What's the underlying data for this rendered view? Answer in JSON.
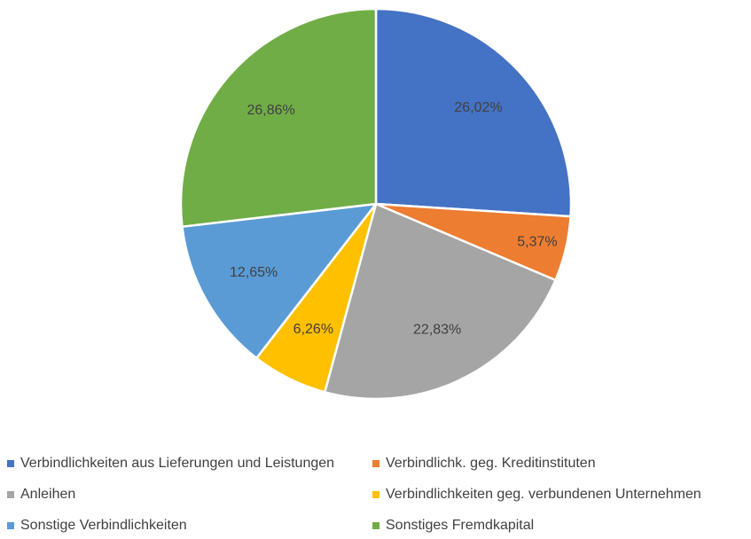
{
  "chart_data": {
    "type": "pie",
    "title": "",
    "start_angle_deg": 0,
    "direction": "clockwise",
    "legend_position": "bottom",
    "categories": [
      "Verbindlichkeiten aus Lieferungen und Leistungen",
      "Verbindlichk. geg. Kreditinstituten",
      "Anleihen",
      "Verbindlichkeiten geg. verbundenen Unternehmen",
      "Sonstige Verbindlichkeiten",
      "Sonstiges Fremdkapital"
    ],
    "values": [
      26.02,
      5.37,
      22.83,
      6.26,
      12.65,
      26.86
    ],
    "data_labels": [
      "26,02%",
      "5,37%",
      "22,83%",
      "6,26%",
      "12,65%",
      "26,86%"
    ],
    "colors": [
      "#4472C4",
      "#ED7D31",
      "#A5A5A5",
      "#FFC000",
      "#5B9BD5",
      "#70AD47"
    ]
  },
  "legend": {
    "items": [
      {
        "label": "Verbindlichkeiten aus Lieferungen und Leistungen",
        "color": "#4472C4"
      },
      {
        "label": "Verbindlichk. geg. Kreditinstituten",
        "color": "#ED7D31"
      },
      {
        "label": "Anleihen",
        "color": "#A5A5A5"
      },
      {
        "label": "Verbindlichkeiten geg. verbundenen Unternehmen",
        "color": "#FFC000"
      },
      {
        "label": "Sonstige Verbindlichkeiten",
        "color": "#5B9BD5"
      },
      {
        "label": "Sonstiges Fremdkapital",
        "color": "#70AD47"
      }
    ]
  }
}
